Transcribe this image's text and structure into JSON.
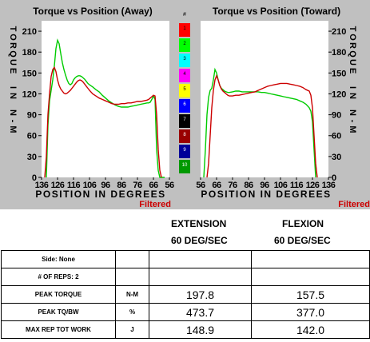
{
  "chart_data": [
    {
      "type": "line",
      "title": "Torque vs Position (Away)",
      "xlabel": "POSITION IN DEGREES",
      "ylabel": "TORQUE IN N-M",
      "ylim": [
        0,
        225
      ],
      "xlim": [
        136,
        56
      ],
      "yticks": [
        "0",
        "30",
        "60",
        "90",
        "120",
        "150",
        "180",
        "210"
      ],
      "xticks": [
        "136",
        "126",
        "116",
        "106",
        "96",
        "86",
        "76",
        "66",
        "56"
      ],
      "note": "Filtered",
      "series": [
        {
          "color": "#00cc00",
          "x": [
            133,
            132,
            131,
            130,
            129,
            128,
            127,
            126,
            125,
            124,
            123,
            122,
            121,
            120,
            119,
            118,
            117,
            116,
            115,
            114,
            113,
            112,
            111,
            110,
            109,
            108,
            107,
            106,
            104,
            102,
            100,
            98,
            96,
            94,
            92,
            90,
            88,
            86,
            84,
            82,
            80,
            78,
            76,
            74,
            72,
            70,
            69,
            68,
            67,
            66,
            65,
            64,
            63,
            62,
            61,
            60,
            59
          ],
          "y": [
            0,
            75,
            110,
            125,
            140,
            160,
            185,
            197,
            192,
            178,
            165,
            155,
            147,
            140,
            135,
            133,
            135,
            140,
            143,
            145,
            146,
            146,
            145,
            143,
            141,
            138,
            135,
            133,
            130,
            126,
            123,
            118,
            114,
            110,
            107,
            104,
            102,
            101,
            101,
            101,
            102,
            103,
            104,
            105,
            106,
            107,
            107,
            108,
            112,
            117,
            112,
            40,
            10,
            0,
            0,
            0,
            0
          ]
        },
        {
          "color": "#cc0000",
          "x": [
            134,
            133,
            132,
            131,
            130,
            129,
            128,
            127,
            126,
            125,
            124,
            123,
            122,
            121,
            120,
            119,
            118,
            117,
            116,
            115,
            114,
            113,
            112,
            111,
            110,
            109,
            108,
            107,
            106,
            104,
            102,
            100,
            98,
            96,
            94,
            92,
            90,
            88,
            86,
            84,
            82,
            80,
            78,
            76,
            74,
            72,
            70,
            69,
            68,
            67,
            66,
            65,
            64,
            63,
            62,
            61
          ],
          "y": [
            0,
            30,
            90,
            120,
            145,
            155,
            158,
            152,
            140,
            132,
            127,
            124,
            121,
            120,
            121,
            123,
            125,
            128,
            131,
            134,
            137,
            139,
            140,
            139,
            137,
            134,
            131,
            128,
            125,
            120,
            117,
            114,
            112,
            110,
            108,
            106,
            105,
            105,
            106,
            106,
            107,
            107,
            108,
            109,
            109,
            110,
            111,
            112,
            114,
            116,
            118,
            117,
            90,
            40,
            10,
            0
          ]
        }
      ]
    },
    {
      "type": "line",
      "title": "Torque vs Position (Toward)",
      "xlabel": "POSITION IN DEGREES",
      "ylabel": "TORQUE IN N-M",
      "ylim": [
        0,
        225
      ],
      "xlim": [
        56,
        136
      ],
      "yticks": [
        "0",
        "30",
        "60",
        "90",
        "120",
        "150",
        "180",
        "210"
      ],
      "xticks": [
        "56",
        "66",
        "76",
        "86",
        "96",
        "106",
        "116",
        "126",
        "136"
      ],
      "note": "Filtered",
      "series": [
        {
          "color": "#00cc00",
          "x": [
            58,
            59,
            60,
            61,
            62,
            63,
            64,
            65,
            66,
            67,
            68,
            69,
            70,
            71,
            72,
            73,
            74,
            76,
            78,
            80,
            82,
            84,
            86,
            88,
            90,
            92,
            94,
            96,
            98,
            100,
            102,
            104,
            106,
            108,
            110,
            112,
            114,
            116,
            118,
            120,
            122,
            124,
            125,
            126,
            127,
            128
          ],
          "y": [
            0,
            40,
            90,
            115,
            125,
            128,
            140,
            155,
            150,
            140,
            132,
            128,
            126,
            124,
            123,
            122,
            122,
            123,
            124,
            124,
            123,
            123,
            123,
            123,
            123,
            123,
            122,
            122,
            121,
            120,
            119,
            118,
            117,
            116,
            115,
            114,
            113,
            112,
            110,
            108,
            105,
            100,
            95,
            80,
            40,
            0
          ]
        },
        {
          "color": "#cc0000",
          "x": [
            60,
            61,
            62,
            63,
            64,
            65,
            66,
            67,
            68,
            69,
            70,
            71,
            72,
            73,
            74,
            76,
            78,
            80,
            82,
            84,
            86,
            88,
            90,
            92,
            94,
            96,
            98,
            100,
            102,
            104,
            106,
            108,
            110,
            112,
            114,
            116,
            118,
            120,
            122,
            124,
            125,
            126,
            127,
            128,
            129
          ],
          "y": [
            0,
            20,
            60,
            100,
            125,
            140,
            146,
            140,
            132,
            127,
            124,
            122,
            120,
            118,
            117,
            117,
            118,
            118,
            119,
            120,
            121,
            122,
            123,
            125,
            127,
            129,
            131,
            132,
            133,
            134,
            135,
            135,
            135,
            134,
            133,
            132,
            131,
            129,
            126,
            124,
            118,
            100,
            60,
            20,
            0
          ]
        }
      ]
    }
  ],
  "legend": {
    "title": "#",
    "items": [
      {
        "label": "1",
        "color": "#ff0000"
      },
      {
        "label": "2",
        "color": "#00ff00"
      },
      {
        "label": "3",
        "color": "#00ffff"
      },
      {
        "label": "4",
        "color": "#ff00ff"
      },
      {
        "label": "5",
        "color": "#ffff00"
      },
      {
        "label": "6",
        "color": "#0000ff"
      },
      {
        "label": "7",
        "color": "#000000"
      },
      {
        "label": "8",
        "color": "#990000"
      },
      {
        "label": "9",
        "color": "#000099"
      },
      {
        "label": "10",
        "color": "#009900"
      }
    ]
  },
  "table": {
    "col1_title": "EXTENSION",
    "col1_sub": "60 DEG/SEC",
    "col2_title": "FLEXION",
    "col2_sub": "60 DEG/SEC",
    "rows": [
      {
        "label": "Side: None",
        "unit": "",
        "ext": "",
        "flex": ""
      },
      {
        "label": "# OF REPS: 2",
        "unit": "",
        "ext": "",
        "flex": ""
      },
      {
        "label": "PEAK TORQUE",
        "unit": "N-M",
        "ext": "197.8",
        "flex": "157.5"
      },
      {
        "label": "PEAK TQ/BW",
        "unit": "%",
        "ext": "473.7",
        "flex": "377.0"
      },
      {
        "label": "MAX REP TOT WORK",
        "unit": "J",
        "ext": "148.9",
        "flex": "142.0"
      }
    ]
  },
  "colors": {
    "panel_bg": "#c0c0c0",
    "plot_bg": "#ffffff",
    "note_color": "#cc0000"
  }
}
